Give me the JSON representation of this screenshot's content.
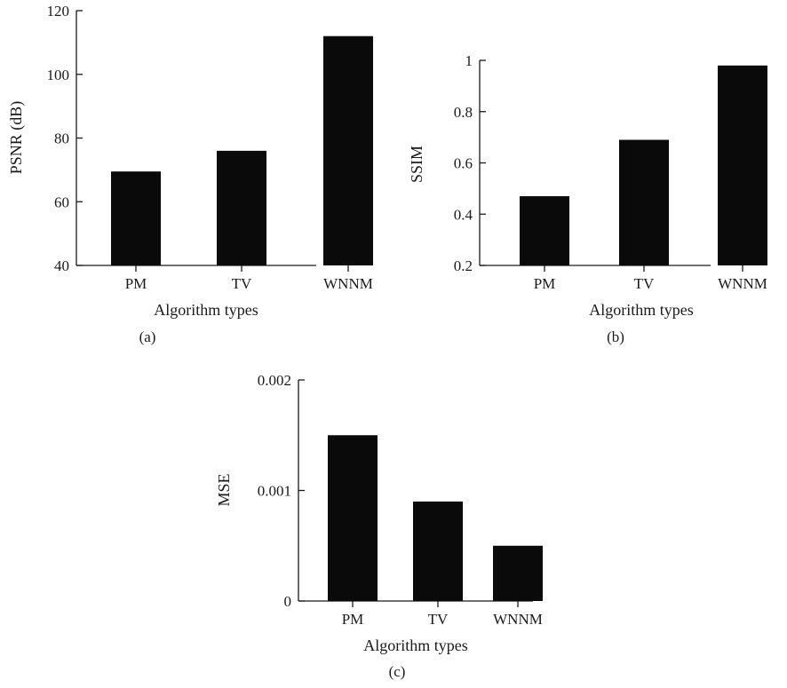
{
  "chart_data": [
    {
      "type": "bar",
      "panel_label": "(a)",
      "categories": [
        "PM",
        "TV",
        "WNNM"
      ],
      "values": [
        69.5,
        76,
        112
      ],
      "xlabel": "Algorithm types",
      "ylabel": "PSNR (dB)",
      "ylim": [
        40,
        120
      ],
      "yticks": [
        40,
        60,
        80,
        100,
        120
      ],
      "ytick_labels": [
        "40",
        "60",
        "80",
        "100",
        "120"
      ],
      "bar_color": "#0a0a0a",
      "grid": false
    },
    {
      "type": "bar",
      "panel_label": "(b)",
      "categories": [
        "PM",
        "TV",
        "WNNM"
      ],
      "values": [
        0.47,
        0.69,
        0.98
      ],
      "xlabel": "Algorithm types",
      "ylabel": "SSIM",
      "ylim": [
        0.2,
        1.0
      ],
      "yticks": [
        0.2,
        0.4,
        0.6,
        0.8,
        1.0
      ],
      "ytick_labels": [
        "0.2",
        "0.4",
        "0.6",
        "0.8",
        "1"
      ],
      "bar_color": "#0a0a0a",
      "grid": false
    },
    {
      "type": "bar",
      "panel_label": "(c)",
      "categories": [
        "PM",
        "TV",
        "WNNM"
      ],
      "values": [
        0.0015,
        0.0009,
        0.0005
      ],
      "xlabel": "Algorithm types",
      "ylabel": "MSE",
      "ylim": [
        0,
        0.002
      ],
      "yticks": [
        0,
        0.001,
        0.002
      ],
      "ytick_labels": [
        "0",
        "0.001",
        "0.002"
      ],
      "bar_color": "#0a0a0a",
      "grid": false
    }
  ]
}
